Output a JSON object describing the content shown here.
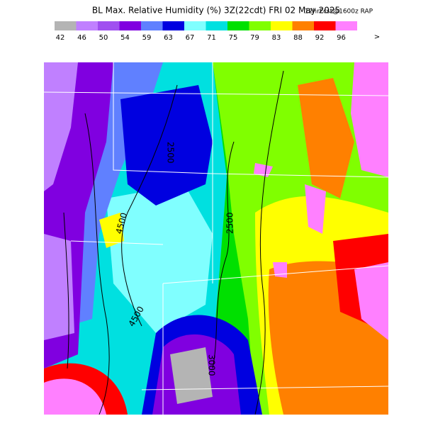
{
  "header": {
    "title": "BL Max. Relative Humidity (%) 3Z(22cdt) FRI 02 May 2025",
    "subtitle": "12hrFcst@1600z RAP"
  },
  "legend": {
    "items": [
      {
        "label": "42",
        "color": "#b4b4b4"
      },
      {
        "label": "46",
        "color": "#c080ff"
      },
      {
        "label": "50",
        "color": "#a050f0"
      },
      {
        "label": "54",
        "color": "#8000e0"
      },
      {
        "label": "59",
        "color": "#6080ff"
      },
      {
        "label": "63",
        "color": "#0000e0"
      },
      {
        "label": "67",
        "color": "#80ffff"
      },
      {
        "label": "71",
        "color": "#00e0e0"
      },
      {
        "label": "75",
        "color": "#00e000"
      },
      {
        "label": "79",
        "color": "#80ff00"
      },
      {
        "label": "83",
        "color": "#ffff00"
      },
      {
        "label": "88",
        "color": "#ff8000"
      },
      {
        "label": "92",
        "color": "#ff0000"
      },
      {
        "label": "96",
        "color": "#ff80ff"
      }
    ],
    "more": ">"
  },
  "contour_labels": [
    "2500",
    "4500",
    "2500",
    "4500",
    "3000"
  ]
}
